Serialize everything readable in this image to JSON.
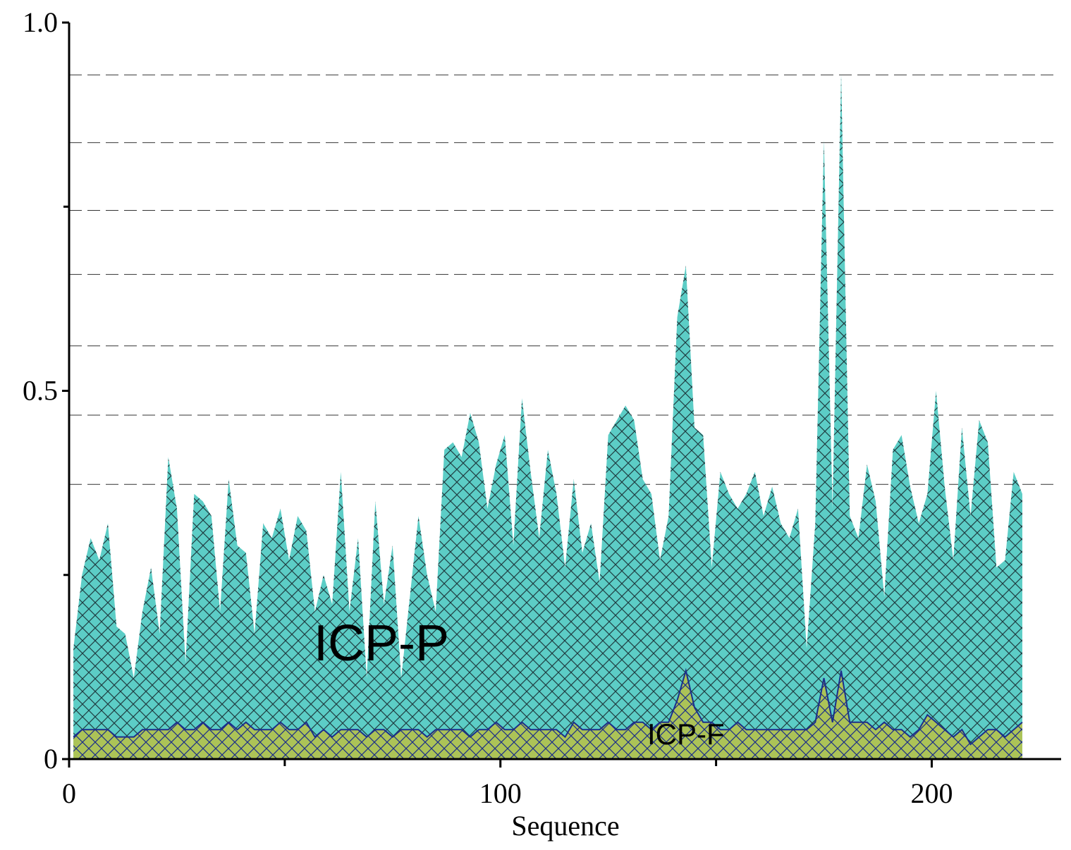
{
  "chart_data": {
    "type": "area",
    "xlabel": "Sequence",
    "x": [
      1,
      3,
      5,
      7,
      9,
      11,
      13,
      15,
      17,
      19,
      21,
      23,
      25,
      27,
      29,
      31,
      33,
      35,
      37,
      39,
      41,
      43,
      45,
      47,
      49,
      51,
      53,
      55,
      57,
      59,
      61,
      63,
      65,
      67,
      69,
      71,
      73,
      75,
      77,
      79,
      81,
      83,
      85,
      87,
      89,
      91,
      93,
      95,
      97,
      99,
      101,
      103,
      105,
      107,
      109,
      111,
      113,
      115,
      117,
      119,
      121,
      123,
      125,
      127,
      129,
      131,
      133,
      135,
      137,
      139,
      141,
      143,
      145,
      147,
      149,
      151,
      153,
      155,
      157,
      159,
      161,
      163,
      165,
      167,
      169,
      171,
      173,
      175,
      177,
      179,
      181,
      183,
      185,
      187,
      189,
      191,
      193,
      195,
      197,
      199,
      201,
      203,
      205,
      207,
      209,
      211,
      213,
      215,
      217,
      219,
      221
    ],
    "series": [
      {
        "name": "ICP-P",
        "color": "#5ccdc6",
        "hatch": true,
        "values": [
          0.15,
          0.25,
          0.3,
          0.27,
          0.32,
          0.18,
          0.17,
          0.11,
          0.2,
          0.26,
          0.17,
          0.41,
          0.34,
          0.13,
          0.36,
          0.35,
          0.33,
          0.2,
          0.38,
          0.29,
          0.28,
          0.17,
          0.32,
          0.3,
          0.34,
          0.27,
          0.33,
          0.31,
          0.2,
          0.25,
          0.21,
          0.39,
          0.2,
          0.3,
          0.11,
          0.35,
          0.21,
          0.29,
          0.11,
          0.22,
          0.33,
          0.25,
          0.2,
          0.42,
          0.43,
          0.41,
          0.47,
          0.43,
          0.34,
          0.4,
          0.44,
          0.29,
          0.49,
          0.39,
          0.3,
          0.42,
          0.36,
          0.26,
          0.38,
          0.28,
          0.32,
          0.24,
          0.44,
          0.46,
          0.48,
          0.46,
          0.38,
          0.36,
          0.27,
          0.33,
          0.6,
          0.67,
          0.45,
          0.44,
          0.26,
          0.39,
          0.36,
          0.34,
          0.36,
          0.39,
          0.33,
          0.37,
          0.32,
          0.3,
          0.34,
          0.15,
          0.32,
          0.84,
          0.34,
          0.93,
          0.33,
          0.3,
          0.4,
          0.35,
          0.22,
          0.42,
          0.44,
          0.37,
          0.32,
          0.36,
          0.5,
          0.37,
          0.27,
          0.45,
          0.33,
          0.46,
          0.43,
          0.26,
          0.27,
          0.39,
          0.36
        ]
      },
      {
        "name": "ICP-F",
        "color": "#b5c24a",
        "hatch": true,
        "values": [
          0.03,
          0.04,
          0.04,
          0.04,
          0.04,
          0.03,
          0.03,
          0.03,
          0.04,
          0.04,
          0.04,
          0.04,
          0.05,
          0.04,
          0.04,
          0.05,
          0.04,
          0.04,
          0.05,
          0.04,
          0.05,
          0.04,
          0.04,
          0.04,
          0.05,
          0.04,
          0.04,
          0.05,
          0.03,
          0.04,
          0.03,
          0.04,
          0.04,
          0.04,
          0.03,
          0.04,
          0.04,
          0.03,
          0.04,
          0.04,
          0.04,
          0.03,
          0.04,
          0.04,
          0.04,
          0.04,
          0.03,
          0.04,
          0.04,
          0.05,
          0.04,
          0.04,
          0.05,
          0.04,
          0.04,
          0.04,
          0.04,
          0.03,
          0.05,
          0.04,
          0.04,
          0.04,
          0.05,
          0.04,
          0.04,
          0.05,
          0.05,
          0.04,
          0.05,
          0.05,
          0.08,
          0.12,
          0.07,
          0.05,
          0.05,
          0.04,
          0.04,
          0.05,
          0.04,
          0.04,
          0.04,
          0.04,
          0.04,
          0.04,
          0.04,
          0.04,
          0.05,
          0.11,
          0.05,
          0.12,
          0.05,
          0.05,
          0.05,
          0.04,
          0.05,
          0.04,
          0.04,
          0.03,
          0.04,
          0.06,
          0.05,
          0.04,
          0.03,
          0.04,
          0.02,
          0.03,
          0.04,
          0.04,
          0.03,
          0.04,
          0.05
        ]
      }
    ],
    "xlim": [
      0,
      230
    ],
    "ylim": [
      0,
      1
    ],
    "xticks": [
      0,
      100,
      200
    ],
    "xminor": [
      50,
      150
    ],
    "yticks": [
      0,
      0.5,
      {
        "value": 1,
        "label": "1.0"
      }
    ],
    "yminor": [
      0.25,
      0.75
    ],
    "reference_lines": [
      0.929,
      0.837,
      0.745,
      0.658,
      0.561,
      0.467,
      0.373
    ]
  }
}
